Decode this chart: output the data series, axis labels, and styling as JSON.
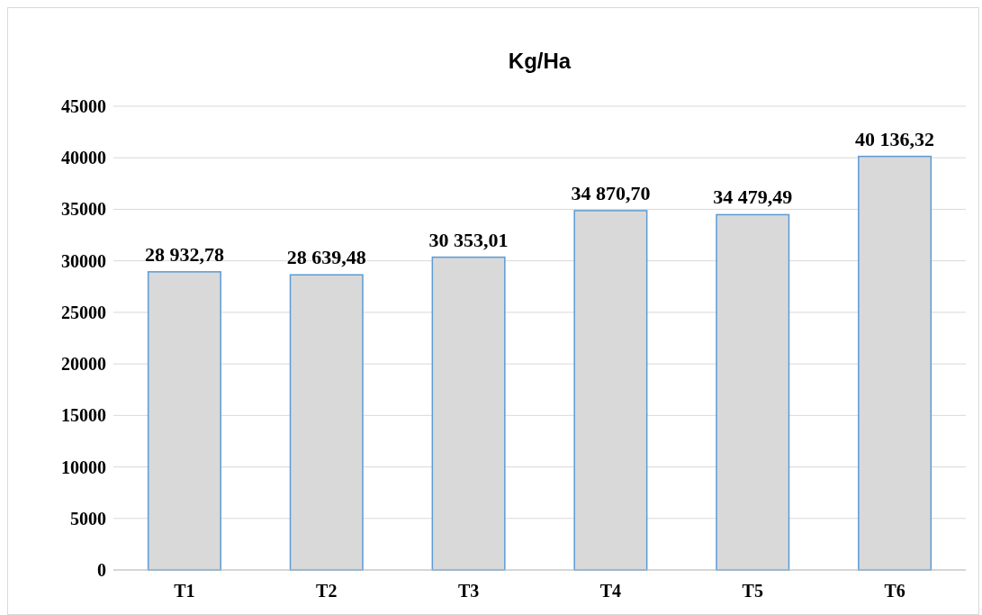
{
  "chart_data": {
    "type": "bar",
    "title": "Kg/Ha",
    "categories": [
      "T1",
      "T2",
      "T3",
      "T4",
      "T5",
      "T6"
    ],
    "values": [
      28932.78,
      28639.48,
      30353.01,
      34870.7,
      34479.49,
      40136.32
    ],
    "value_labels": [
      "28 932,78",
      "28 639,48",
      "30 353,01",
      "34 870,70",
      "34 479,49",
      "40 136,32"
    ],
    "color": "#d9d9d9",
    "ylim": [
      0,
      45000
    ],
    "yticks": [
      0,
      5000,
      10000,
      15000,
      20000,
      25000,
      30000,
      35000,
      40000,
      45000
    ],
    "grid": "y"
  }
}
